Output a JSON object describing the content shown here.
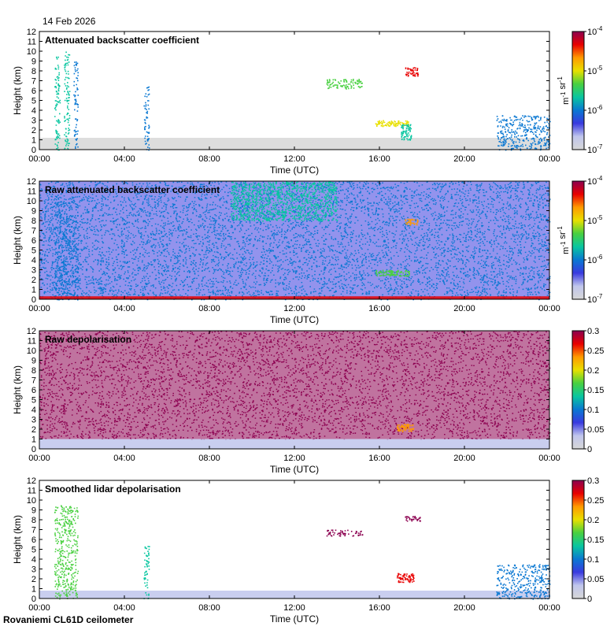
{
  "header": {
    "date": "14 Feb 2026"
  },
  "footer": {
    "site": "Rovaniemi CL61D ceilometer"
  },
  "colormap": [
    "#d7d7d7",
    "#c0c6ec",
    "#3a3adf",
    "#0a78d2",
    "#09c6a0",
    "#49d040",
    "#e8e000",
    "#ff9a00",
    "#e80000",
    "#8c0050"
  ],
  "chart_data": [
    {
      "type": "heatmap",
      "title": "Attenuated backscatter coefficient",
      "xlabel": "Time (UTC)",
      "ylabel": "Height (km)",
      "xticks": [
        "00:00",
        "04:00",
        "08:00",
        "12:00",
        "16:00",
        "20:00",
        "00:00"
      ],
      "yticks": [
        "0",
        "1",
        "2",
        "3",
        "4",
        "5",
        "6",
        "7",
        "8",
        "9",
        "10",
        "11",
        "12"
      ],
      "xlim": [
        0,
        24
      ],
      "ylim": [
        0,
        12
      ],
      "colorbar": {
        "scale": "log",
        "ticks": [
          "10-7",
          "10-6",
          "10-5",
          "10-4"
        ],
        "label": "m-1 sr-1",
        "range": [
          1e-07,
          0.0001
        ]
      },
      "features": [
        {
          "kind": "surface",
          "t": [
            0,
            24
          ],
          "h": [
            0,
            1.2
          ],
          "v": 0
        },
        {
          "kind": "column",
          "t": [
            0.7,
            0.95
          ],
          "h": [
            0,
            9.5
          ],
          "v": 0.4
        },
        {
          "kind": "column",
          "t": [
            1.15,
            1.4
          ],
          "h": [
            0,
            10
          ],
          "v": 0.4
        },
        {
          "kind": "column",
          "t": [
            1.6,
            1.8
          ],
          "h": [
            0,
            9
          ],
          "v": 0.35
        },
        {
          "kind": "column",
          "t": [
            4.9,
            5.15
          ],
          "h": [
            0,
            6.5
          ],
          "v": 0.3
        },
        {
          "kind": "layer",
          "t": [
            13.5,
            15.2
          ],
          "h": [
            6.2,
            7.2
          ],
          "v": 0.55
        },
        {
          "kind": "blob",
          "t": [
            17.2,
            17.8
          ],
          "h": [
            7.5,
            8.4
          ],
          "v": 0.85
        },
        {
          "kind": "blob",
          "t": [
            15.8,
            17.4
          ],
          "h": [
            2.4,
            3.0
          ],
          "v": 0.65
        },
        {
          "kind": "blob",
          "t": [
            17.0,
            17.5
          ],
          "h": [
            1.0,
            2.6
          ],
          "v": 0.4
        },
        {
          "kind": "column",
          "t": [
            21.5,
            24
          ],
          "h": [
            0,
            3.5
          ],
          "v": 0.3
        }
      ]
    },
    {
      "type": "heatmap",
      "title": "Raw attenuated backscatter coefficient",
      "xlabel": "Time (UTC)",
      "ylabel": "Height (km)",
      "xticks": [
        "00:00",
        "04:00",
        "08:00",
        "12:00",
        "16:00",
        "20:00",
        "00:00"
      ],
      "yticks": [
        "0",
        "1",
        "2",
        "3",
        "4",
        "5",
        "6",
        "7",
        "8",
        "9",
        "10",
        "11",
        "12"
      ],
      "xlim": [
        0,
        24
      ],
      "ylim": [
        0,
        12
      ],
      "colorbar": {
        "scale": "log",
        "ticks": [
          "10-7",
          "10-6",
          "10-5",
          "10-4"
        ],
        "label": "m-1 sr-1",
        "range": [
          1e-07,
          0.0001
        ]
      },
      "features": [
        {
          "kind": "noise",
          "t": [
            0,
            24
          ],
          "h": [
            0,
            12
          ],
          "v": 0.25
        },
        {
          "kind": "layer",
          "t": [
            9,
            14
          ],
          "h": [
            8,
            12
          ],
          "v": 0.45
        },
        {
          "kind": "column",
          "t": [
            0.7,
            1.8
          ],
          "h": [
            0,
            10
          ],
          "v": 0.35
        },
        {
          "kind": "blob",
          "t": [
            17.2,
            17.8
          ],
          "h": [
            7.6,
            8.2
          ],
          "v": 0.75
        },
        {
          "kind": "blob",
          "t": [
            15.8,
            17.4
          ],
          "h": [
            2.4,
            3.0
          ],
          "v": 0.6
        },
        {
          "kind": "surface",
          "t": [
            0,
            24
          ],
          "h": [
            0,
            0.3
          ],
          "v": 0.9
        }
      ]
    },
    {
      "type": "heatmap",
      "title": "Raw depolarisation",
      "xlabel": "Time (UTC)",
      "ylabel": "Height (km)",
      "xticks": [
        "00:00",
        "04:00",
        "08:00",
        "12:00",
        "16:00",
        "20:00",
        "00:00"
      ],
      "yticks": [
        "0",
        "1",
        "2",
        "3",
        "4",
        "5",
        "6",
        "7",
        "8",
        "9",
        "10",
        "11",
        "12"
      ],
      "xlim": [
        0,
        24
      ],
      "ylim": [
        0,
        12
      ],
      "colorbar": {
        "scale": "linear",
        "ticks": [
          "0",
          "0.05",
          "0.1",
          "0.15",
          "0.2",
          "0.25",
          "0.3"
        ],
        "range": [
          0,
          0.3
        ]
      },
      "features": [
        {
          "kind": "noise",
          "t": [
            0,
            24
          ],
          "h": [
            1,
            12
          ],
          "v": 0.95
        },
        {
          "kind": "surface",
          "t": [
            0,
            24
          ],
          "h": [
            0,
            1
          ],
          "v": 0.15
        },
        {
          "kind": "blob",
          "t": [
            16.8,
            17.6
          ],
          "h": [
            1.8,
            2.6
          ],
          "v": 0.8
        }
      ]
    },
    {
      "type": "heatmap",
      "title": "Smoothed lidar depolarisation",
      "xlabel": "Time (UTC)",
      "ylabel": "Height (km)",
      "xticks": [
        "00:00",
        "04:00",
        "08:00",
        "12:00",
        "16:00",
        "20:00",
        "00:00"
      ],
      "yticks": [
        "0",
        "1",
        "2",
        "3",
        "4",
        "5",
        "6",
        "7",
        "8",
        "9",
        "10",
        "11",
        "12"
      ],
      "xlim": [
        0,
        24
      ],
      "ylim": [
        0,
        12
      ],
      "colorbar": {
        "scale": "linear",
        "ticks": [
          "0",
          "0.05",
          "0.1",
          "0.15",
          "0.2",
          "0.25",
          "0.3"
        ],
        "range": [
          0,
          0.3
        ]
      },
      "features": [
        {
          "kind": "surface",
          "t": [
            0,
            24
          ],
          "h": [
            0,
            0.8
          ],
          "v": 0.15
        },
        {
          "kind": "column",
          "t": [
            0.7,
            1.8
          ],
          "h": [
            0,
            9.5
          ],
          "v": 0.5
        },
        {
          "kind": "column",
          "t": [
            4.9,
            5.15
          ],
          "h": [
            0,
            5.5
          ],
          "v": 0.45
        },
        {
          "kind": "layer",
          "t": [
            13.5,
            15.2
          ],
          "h": [
            6.4,
            7.0
          ],
          "v": 0.95
        },
        {
          "kind": "blob",
          "t": [
            17.2,
            17.9
          ],
          "h": [
            7.9,
            8.4
          ],
          "v": 0.95
        },
        {
          "kind": "blob",
          "t": [
            16.8,
            17.6
          ],
          "h": [
            1.7,
            2.6
          ],
          "v": 0.85
        },
        {
          "kind": "column",
          "t": [
            21.5,
            24
          ],
          "h": [
            0,
            3.5
          ],
          "v": 0.35
        }
      ]
    }
  ]
}
